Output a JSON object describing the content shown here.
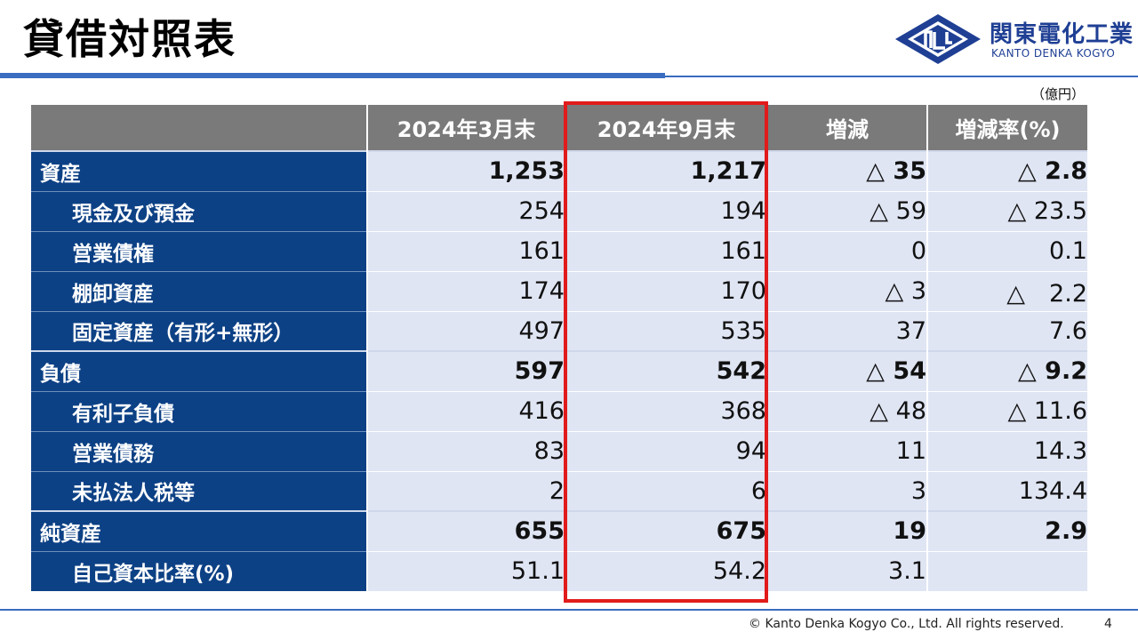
{
  "header": {
    "title": "貸借対照表",
    "logo_jp": "関東電化工業",
    "logo_en": "KANTO DENKA KOGYO"
  },
  "unit": "（億円）",
  "table": {
    "columns": [
      "2024年3月末",
      "2024年9月末",
      "増減",
      "増減率(%)"
    ],
    "rows": [
      {
        "label": "資産",
        "level": "main",
        "cells": [
          "1,253",
          "1,217",
          "△ 35",
          "△ 2.8"
        ]
      },
      {
        "label": "現金及び預金",
        "level": "sub",
        "cells": [
          "254",
          "194",
          "△ 59",
          "△ 23.5"
        ]
      },
      {
        "label": "営業債権",
        "level": "sub",
        "cells": [
          "161",
          "161",
          "0",
          "0.1"
        ]
      },
      {
        "label": "棚卸資産",
        "level": "sub",
        "cells": [
          "174",
          "170",
          "△ 3",
          "△　2.2"
        ]
      },
      {
        "label": "固定資産（有形+無形）",
        "level": "sub",
        "cells": [
          "497",
          "535",
          "37",
          "7.6"
        ]
      },
      {
        "label": "負債",
        "level": "main",
        "cells": [
          "597",
          "542",
          "△ 54",
          "△ 9.2"
        ]
      },
      {
        "label": "有利子負債",
        "level": "sub",
        "cells": [
          "416",
          "368",
          "△ 48",
          "△ 11.6"
        ]
      },
      {
        "label": "営業債務",
        "level": "sub",
        "cells": [
          "83",
          "94",
          "11",
          "14.3"
        ]
      },
      {
        "label": "未払法人税等",
        "level": "sub",
        "cells": [
          "2",
          "6",
          "3",
          "134.4"
        ]
      },
      {
        "label": "純資産",
        "level": "main",
        "cells": [
          "655",
          "675",
          "19",
          "2.9"
        ]
      },
      {
        "label": "自己資本比率(%)",
        "level": "sub",
        "cells": [
          "51.1",
          "54.2",
          "3.1",
          ""
        ]
      }
    ]
  },
  "footer": {
    "copyright": "© Kanto Denka Kogyo Co., Ltd. All rights reserved.",
    "page": "4"
  },
  "colors": {
    "accent": "#3a6cc0",
    "label_bg": "#0d4185",
    "cell_bg": "#dfe5f3",
    "header_bg": "#7a7a7a",
    "highlight": "#e11b1b"
  }
}
